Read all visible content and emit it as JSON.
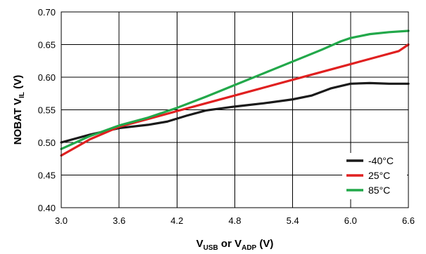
{
  "chart_data": {
    "type": "line",
    "title": "",
    "xlabel": {
      "main": "V",
      "sub1": "USB",
      "mid": " or V",
      "sub2": "ADP",
      "unit": " (V)"
    },
    "ylabel": {
      "main": "NOBAT V",
      "sub": "IL",
      "unit": " (V)"
    },
    "xlim": [
      3.0,
      6.6
    ],
    "ylim": [
      0.4,
      0.7
    ],
    "x_ticks": [
      3.0,
      3.6,
      4.2,
      4.8,
      5.4,
      6.0,
      6.6
    ],
    "x_tick_labels": [
      "3.0",
      "3.6",
      "4.2",
      "4.8",
      "5.4",
      "6.0",
      "6.6"
    ],
    "y_ticks": [
      0.4,
      0.45,
      0.5,
      0.55,
      0.6,
      0.65,
      0.7
    ],
    "y_tick_labels": [
      "0.40",
      "0.45",
      "0.50",
      "0.55",
      "0.60",
      "0.65",
      "0.70"
    ],
    "grid": true,
    "legend_position": "bottom-right",
    "series": [
      {
        "name": "-40°C",
        "color": "#1a1a1a",
        "x": [
          3.0,
          3.3,
          3.6,
          3.9,
          4.1,
          4.3,
          4.5,
          4.8,
          5.1,
          5.4,
          5.6,
          5.8,
          6.0,
          6.2,
          6.4,
          6.6
        ],
        "y": [
          0.5,
          0.512,
          0.522,
          0.527,
          0.532,
          0.541,
          0.549,
          0.555,
          0.56,
          0.566,
          0.572,
          0.583,
          0.59,
          0.591,
          0.59,
          0.59
        ]
      },
      {
        "name": "25°C",
        "color": "#e02020",
        "x": [
          3.0,
          3.3,
          3.6,
          3.9,
          4.2,
          4.5,
          4.8,
          5.1,
          5.4,
          5.7,
          6.0,
          6.3,
          6.5,
          6.6
        ],
        "y": [
          0.48,
          0.505,
          0.524,
          0.536,
          0.548,
          0.56,
          0.572,
          0.584,
          0.596,
          0.608,
          0.62,
          0.632,
          0.64,
          0.65
        ]
      },
      {
        "name": "85°C",
        "color": "#22a84a",
        "x": [
          3.0,
          3.3,
          3.6,
          3.9,
          4.2,
          4.5,
          4.8,
          5.1,
          5.4,
          5.7,
          5.9,
          6.0,
          6.2,
          6.4,
          6.6
        ],
        "y": [
          0.49,
          0.51,
          0.526,
          0.538,
          0.553,
          0.57,
          0.588,
          0.606,
          0.624,
          0.642,
          0.655,
          0.66,
          0.666,
          0.669,
          0.671
        ]
      }
    ]
  }
}
